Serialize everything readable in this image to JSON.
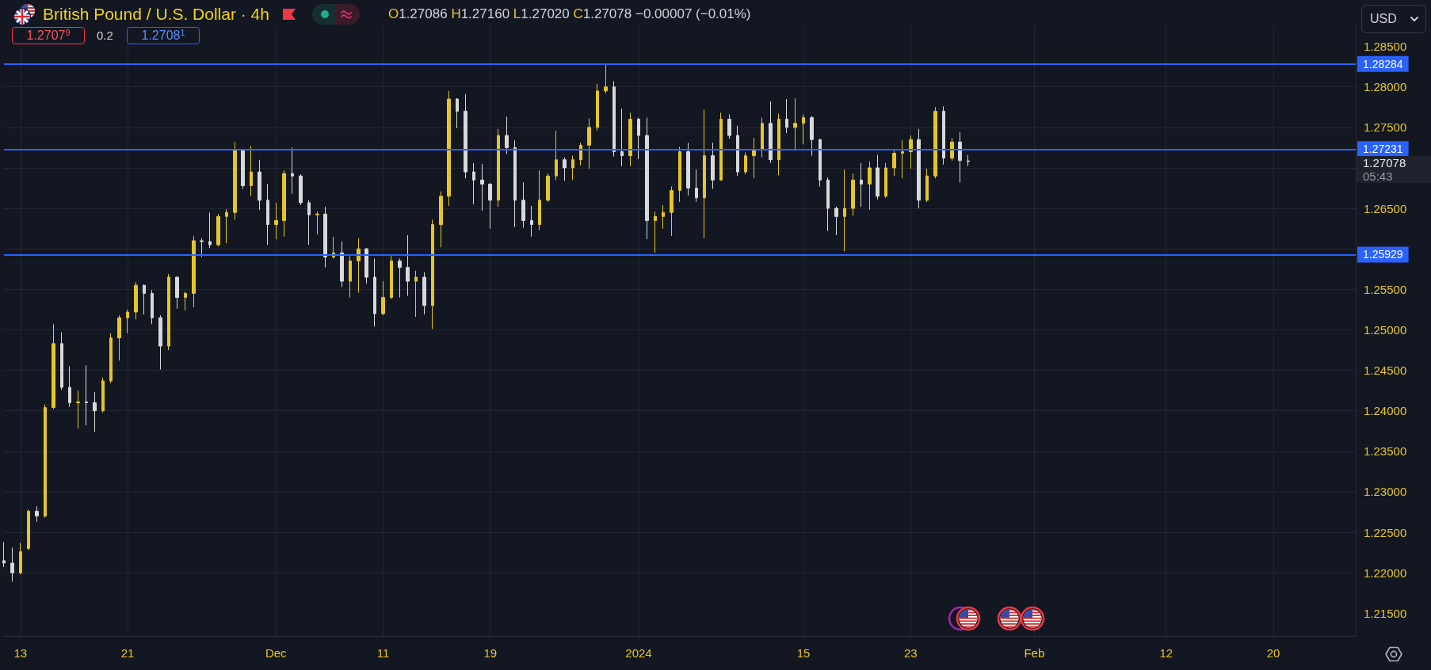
{
  "chart_data": {
    "type": "candlestick",
    "title": "British Pound / U.S. Dollar · 4h",
    "categories": [
      null,
      null,
      "13",
      null,
      null,
      null,
      null,
      null,
      null,
      null,
      null,
      null,
      null,
      null,
      null,
      "21",
      null,
      null,
      null,
      null,
      null,
      null,
      null,
      null,
      null,
      null,
      null,
      null,
      null,
      null,
      null,
      null,
      null,
      "Dec",
      null,
      null,
      null,
      null,
      null,
      null,
      null,
      null,
      null,
      null,
      null,
      null,
      "11",
      null,
      null,
      null,
      null,
      null,
      null,
      null,
      null,
      null,
      null,
      null,
      null,
      "19",
      null,
      null,
      null,
      null,
      null,
      null,
      null,
      null,
      null,
      null,
      null,
      null,
      null,
      null,
      null,
      null,
      null,
      "2024",
      null,
      null,
      null,
      null,
      null,
      null,
      null,
      null,
      null,
      null,
      null,
      null,
      null,
      null,
      null,
      null,
      null,
      null,
      null,
      "15",
      null,
      null,
      null,
      null,
      null,
      null,
      null,
      null,
      null,
      null,
      null,
      null,
      "23",
      null,
      null,
      null,
      null,
      null,
      null,
      null,
      null,
      null,
      null,
      null,
      null,
      null,
      null,
      "Feb",
      null,
      null,
      null,
      null,
      null,
      null,
      null,
      null,
      null,
      null,
      null,
      null,
      null,
      null,
      null,
      "12",
      null,
      null,
      null,
      null,
      null,
      null,
      null,
      null,
      null,
      null,
      null,
      null,
      "20",
      null,
      null,
      null,
      null,
      null,
      null,
      null,
      null,
      null,
      null
    ],
    "ohlc": [
      [
        1.2215,
        1.2238,
        1.2207,
        1.2212
      ],
      [
        1.2212,
        1.2231,
        1.2189,
        1.22
      ],
      [
        1.22,
        1.2237,
        1.2198,
        1.2226
      ],
      [
        1.223,
        1.2278,
        1.2228,
        1.2276
      ],
      [
        1.2276,
        1.2282,
        1.2263,
        1.227
      ],
      [
        1.227,
        1.2408,
        1.2268,
        1.2404
      ],
      [
        1.2404,
        1.2507,
        1.2402,
        1.2483
      ],
      [
        1.2483,
        1.2497,
        1.2426,
        1.2429
      ],
      [
        1.2429,
        1.2455,
        1.2405,
        1.241
      ],
      [
        1.241,
        1.2425,
        1.2378,
        1.2411
      ],
      [
        1.2411,
        1.2456,
        1.2382,
        1.241
      ],
      [
        1.241,
        1.2423,
        1.2374,
        1.24
      ],
      [
        1.24,
        1.2441,
        1.2398,
        1.2437
      ],
      [
        1.2437,
        1.2496,
        1.2434,
        1.249
      ],
      [
        1.249,
        1.2518,
        1.2462,
        1.2515
      ],
      [
        1.2515,
        1.2525,
        1.2496,
        1.2522
      ],
      [
        1.2522,
        1.2559,
        1.2513,
        1.2555
      ],
      [
        1.2555,
        1.2556,
        1.2519,
        1.2545
      ],
      [
        1.2545,
        1.2549,
        1.2507,
        1.2515
      ],
      [
        1.2515,
        1.2518,
        1.2451,
        1.248
      ],
      [
        1.248,
        1.2569,
        1.2475,
        1.2565
      ],
      [
        1.2565,
        1.2566,
        1.2526,
        1.254
      ],
      [
        1.254,
        1.2547,
        1.2524,
        1.2545
      ],
      [
        1.2545,
        1.2616,
        1.2528,
        1.261
      ],
      [
        1.261,
        1.2613,
        1.259,
        1.2609
      ],
      [
        1.2609,
        1.2645,
        1.2601,
        1.2605
      ],
      [
        1.2605,
        1.2643,
        1.2603,
        1.264
      ],
      [
        1.264,
        1.2649,
        1.2607,
        1.2645
      ],
      [
        1.2645,
        1.2732,
        1.2636,
        1.2722
      ],
      [
        1.2722,
        1.2723,
        1.2674,
        1.2678
      ],
      [
        1.2678,
        1.2727,
        1.2665,
        1.2695
      ],
      [
        1.2695,
        1.271,
        1.2648,
        1.266
      ],
      [
        1.266,
        1.268,
        1.2605,
        1.263
      ],
      [
        1.263,
        1.2657,
        1.2612,
        1.2635
      ],
      [
        1.2635,
        1.2697,
        1.2615,
        1.2693
      ],
      [
        1.2693,
        1.2725,
        1.2668,
        1.269
      ],
      [
        1.269,
        1.2692,
        1.2654,
        1.2657
      ],
      [
        1.2657,
        1.266,
        1.2605,
        1.2642
      ],
      [
        1.2642,
        1.2646,
        1.2618,
        1.2643
      ],
      [
        1.2643,
        1.2652,
        1.2577,
        1.259
      ],
      [
        1.259,
        1.2615,
        1.2588,
        1.2595
      ],
      [
        1.2595,
        1.2609,
        1.2553,
        1.256
      ],
      [
        1.256,
        1.2591,
        1.254,
        1.2585
      ],
      [
        1.2585,
        1.2613,
        1.2546,
        1.26
      ],
      [
        1.26,
        1.2601,
        1.2557,
        1.2565
      ],
      [
        1.2565,
        1.2588,
        1.2504,
        1.252
      ],
      [
        1.252,
        1.256,
        1.2518,
        1.254
      ],
      [
        1.254,
        1.2592,
        1.2538,
        1.2585
      ],
      [
        1.2585,
        1.2588,
        1.254,
        1.2577
      ],
      [
        1.2577,
        1.2617,
        1.2542,
        1.256
      ],
      [
        1.256,
        1.2573,
        1.2516,
        1.2565
      ],
      [
        1.2565,
        1.2571,
        1.2519,
        1.253
      ],
      [
        1.253,
        1.2636,
        1.2501,
        1.263
      ],
      [
        1.263,
        1.2671,
        1.2602,
        1.2665
      ],
      [
        1.2665,
        1.2795,
        1.2653,
        1.2785
      ],
      [
        1.2785,
        1.2786,
        1.2749,
        1.277
      ],
      [
        1.277,
        1.2791,
        1.2687,
        1.2695
      ],
      [
        1.2695,
        1.2706,
        1.2655,
        1.2685
      ],
      [
        1.2685,
        1.2705,
        1.2647,
        1.268
      ],
      [
        1.268,
        1.2681,
        1.2625,
        1.266
      ],
      [
        1.266,
        1.2748,
        1.2652,
        1.274
      ],
      [
        1.274,
        1.2763,
        1.2717,
        1.2725
      ],
      [
        1.2725,
        1.2734,
        1.2627,
        1.266
      ],
      [
        1.266,
        1.2682,
        1.2626,
        1.2635
      ],
      [
        1.2635,
        1.2653,
        1.2615,
        1.263
      ],
      [
        1.263,
        1.2697,
        1.2623,
        1.266
      ],
      [
        1.266,
        1.2693,
        1.2658,
        1.269
      ],
      [
        1.269,
        1.2746,
        1.2685,
        1.271
      ],
      [
        1.271,
        1.2713,
        1.2684,
        1.27
      ],
      [
        1.27,
        1.2715,
        1.2685,
        1.271
      ],
      [
        1.271,
        1.2731,
        1.2703,
        1.2728
      ],
      [
        1.2728,
        1.2761,
        1.2699,
        1.275
      ],
      [
        1.275,
        1.2804,
        1.2746,
        1.2795
      ],
      [
        1.2795,
        1.2828,
        1.2792,
        1.28
      ],
      [
        1.28,
        1.2807,
        1.2714,
        1.272
      ],
      [
        1.272,
        1.2773,
        1.2702,
        1.2715
      ],
      [
        1.2715,
        1.2768,
        1.2702,
        1.276
      ],
      [
        1.276,
        1.2762,
        1.2711,
        1.274
      ],
      [
        1.274,
        1.2762,
        1.2612,
        1.2635
      ],
      [
        1.2635,
        1.2646,
        1.2595,
        1.264
      ],
      [
        1.264,
        1.2654,
        1.2625,
        1.2645
      ],
      [
        1.2645,
        1.2677,
        1.2616,
        1.2672
      ],
      [
        1.2672,
        1.2726,
        1.2658,
        1.272
      ],
      [
        1.272,
        1.2731,
        1.2666,
        1.2675
      ],
      [
        1.2675,
        1.2698,
        1.2658,
        1.2663
      ],
      [
        1.2663,
        1.2772,
        1.2613,
        1.2715
      ],
      [
        1.2715,
        1.2731,
        1.2674,
        1.2685
      ],
      [
        1.2685,
        1.2768,
        1.2684,
        1.276
      ],
      [
        1.276,
        1.2766,
        1.2736,
        1.274
      ],
      [
        1.274,
        1.2752,
        1.269,
        1.2695
      ],
      [
        1.2695,
        1.2719,
        1.2692,
        1.2715
      ],
      [
        1.2715,
        1.2737,
        1.2687,
        1.2722
      ],
      [
        1.2722,
        1.2762,
        1.2713,
        1.2755
      ],
      [
        1.2755,
        1.2782,
        1.2706,
        1.271
      ],
      [
        1.271,
        1.2767,
        1.2691,
        1.276
      ],
      [
        1.276,
        1.2785,
        1.2743,
        1.275
      ],
      [
        1.275,
        1.2786,
        1.2721,
        1.2755
      ],
      [
        1.2755,
        1.2766,
        1.2729,
        1.2762
      ],
      [
        1.2762,
        1.2764,
        1.2715,
        1.2735
      ],
      [
        1.2735,
        1.2736,
        1.2677,
        1.2685
      ],
      [
        1.2685,
        1.2688,
        1.2622,
        1.265
      ],
      [
        1.265,
        1.2652,
        1.2617,
        1.264
      ],
      [
        1.264,
        1.2698,
        1.2597,
        1.265
      ],
      [
        1.265,
        1.2693,
        1.2641,
        1.2685
      ],
      [
        1.2685,
        1.2706,
        1.2652,
        1.268
      ],
      [
        1.268,
        1.2708,
        1.2648,
        1.27
      ],
      [
        1.27,
        1.2716,
        1.2661,
        1.2665
      ],
      [
        1.2665,
        1.2706,
        1.2663,
        1.27
      ],
      [
        1.27,
        1.2721,
        1.269,
        1.2718
      ],
      [
        1.2718,
        1.2734,
        1.2687,
        1.272
      ],
      [
        1.272,
        1.274,
        1.2699,
        1.2735
      ],
      [
        1.2735,
        1.2748,
        1.265,
        1.266
      ],
      [
        1.266,
        1.2699,
        1.2658,
        1.269
      ],
      [
        1.269,
        1.2775,
        1.2687,
        1.277
      ],
      [
        1.277,
        1.2776,
        1.2704,
        1.2712
      ],
      [
        1.2712,
        1.2737,
        1.2709,
        1.2732
      ],
      [
        1.2732,
        1.2744,
        1.2682,
        1.2709
      ],
      [
        1.27086,
        1.2716,
        1.2702,
        1.27078
      ],
      null,
      null,
      null,
      null,
      null,
      null,
      null,
      null,
      null,
      null,
      null,
      null,
      null,
      null,
      null,
      null,
      null,
      null,
      null,
      null,
      null,
      null,
      null,
      null,
      null,
      null,
      null,
      null,
      null,
      null,
      null,
      null,
      null,
      null,
      null,
      null,
      null,
      null,
      null,
      null,
      null,
      null,
      null,
      null,
      null,
      null,
      null
    ],
    "colors": [
      "#d8d9dc",
      "#d8d9dc",
      "#e5c52a",
      "#e5c52a",
      "#d8d9dc",
      "#e5c52a",
      "#e5c52a",
      "#d8d9dc",
      "#d8d9dc",
      "#e5c52a",
      "#d8d9dc",
      "#d8d9dc",
      "#e5c52a",
      "#e5c52a",
      "#e5c52a",
      "#e5c52a",
      "#e5c52a",
      "#d8d9dc",
      "#d8d9dc",
      "#d8d9dc",
      "#e5c52a",
      "#d8d9dc",
      "#e5c52a",
      "#e5c52a",
      "#d8d9dc",
      "#d8d9dc",
      "#e5c52a",
      "#e5c52a",
      "#e5c52a",
      "#d8d9dc",
      "#e5c52a",
      "#d8d9dc",
      "#d8d9dc",
      "#e5c52a",
      "#e5c52a",
      "#d8d9dc",
      "#d8d9dc",
      "#d8d9dc",
      "#e5c52a",
      "#d8d9dc",
      "#e5c52a",
      "#d8d9dc",
      "#e5c52a",
      "#e5c52a",
      "#d8d9dc",
      "#d8d9dc",
      "#e5c52a",
      "#e5c52a",
      "#d8d9dc",
      "#d8d9dc",
      "#e5c52a",
      "#d8d9dc",
      "#e5c52a",
      "#e5c52a",
      "#e5c52a",
      "#d8d9dc",
      "#d8d9dc",
      "#d8d9dc",
      "#d8d9dc",
      "#d8d9dc",
      "#e5c52a",
      "#d8d9dc",
      "#d8d9dc",
      "#d8d9dc",
      "#d8d9dc",
      "#e5c52a",
      "#e5c52a",
      "#e5c52a",
      "#d8d9dc",
      "#e5c52a",
      "#e5c52a",
      "#e5c52a",
      "#e5c52a",
      "#e5c52a",
      "#d8d9dc",
      "#d8d9dc",
      "#e5c52a",
      "#d8d9dc",
      "#d8d9dc",
      "#e5c52a",
      "#e5c52a",
      "#e5c52a",
      "#e5c52a",
      "#d8d9dc",
      "#d8d9dc",
      "#e5c52a",
      "#d8d9dc",
      "#e5c52a",
      "#d8d9dc",
      "#d8d9dc",
      "#e5c52a",
      "#e5c52a",
      "#e5c52a",
      "#d8d9dc",
      "#e5c52a",
      "#d8d9dc",
      "#e5c52a",
      "#e5c52a",
      "#d8d9dc",
      "#d8d9dc",
      "#d8d9dc",
      "#d8d9dc",
      "#e5c52a",
      "#e5c52a",
      "#d8d9dc",
      "#e5c52a",
      "#d8d9dc",
      "#e5c52a",
      "#e5c52a",
      "#e5c52a",
      "#e5c52a",
      "#d8d9dc",
      "#e5c52a",
      "#e5c52a",
      "#d8d9dc",
      "#e5c52a",
      "#d8d9dc",
      "#d8d9dc",
      null,
      null,
      null,
      null,
      null,
      null,
      null,
      null,
      null,
      null,
      null,
      null,
      null,
      null,
      null,
      null,
      null,
      null,
      null,
      null,
      null,
      null,
      null,
      null,
      null,
      null,
      null,
      null,
      null,
      null,
      null,
      null,
      null,
      null,
      null,
      null,
      null,
      null,
      null,
      null,
      null,
      null,
      null,
      null,
      null,
      null,
      null
    ],
    "ylim": [
      1.2122,
      1.2876
    ],
    "yticks": [
      {
        "value": 1.215,
        "label": "1.21500"
      },
      {
        "value": 1.22,
        "label": "1.22000"
      },
      {
        "value": 1.225,
        "label": "1.22500"
      },
      {
        "value": 1.23,
        "label": "1.23000"
      },
      {
        "value": 1.235,
        "label": "1.23500"
      },
      {
        "value": 1.24,
        "label": "1.24000"
      },
      {
        "value": 1.245,
        "label": "1.24500"
      },
      {
        "value": 1.25,
        "label": "1.25000"
      },
      {
        "value": 1.255,
        "label": "1.25500"
      },
      {
        "value": 1.26,
        "label": null
      },
      {
        "value": 1.265,
        "label": "1.26500"
      },
      {
        "value": 1.27,
        "label": null
      },
      {
        "value": 1.275,
        "label": "1.27500"
      },
      {
        "value": 1.28,
        "label": "1.28000"
      },
      {
        "value": 1.285,
        "label": "1.28500"
      }
    ],
    "ref_lines": [
      {
        "axis": "y",
        "value": 1.28284,
        "label": "1.28284",
        "color": "#2962ff"
      },
      {
        "axis": "y",
        "value": 1.27231,
        "label": "1.27231",
        "color": "#2962ff"
      },
      {
        "axis": "y",
        "value": 1.25929,
        "label": "1.25929",
        "color": "#2962ff"
      }
    ],
    "annotations": [
      "O1.27086 H1.27160 L1.27020 C1.27078 −0.00007 (−0.01%)",
      "1.2707$^{9}$",
      "0.2",
      "1.2708$^{1}$",
      "USD",
      "1.27078",
      "05:43"
    ],
    "grid": true
  }
}
